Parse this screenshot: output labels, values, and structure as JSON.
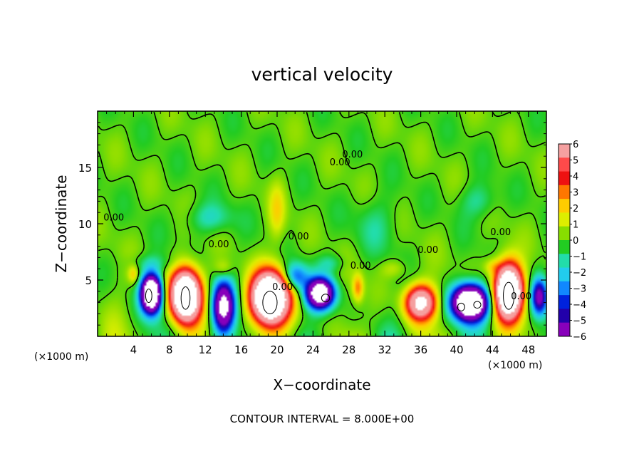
{
  "chart_data": {
    "type": "heatmap",
    "title": "vertical velocity",
    "xlabel": "X−coordinate",
    "ylabel": "Z−coordinate",
    "xlim": [
      0,
      50
    ],
    "ylim": [
      0,
      20
    ],
    "x_ticks": [
      4,
      8,
      12,
      16,
      20,
      24,
      28,
      32,
      36,
      40,
      44,
      48
    ],
    "y_ticks": [
      5,
      10,
      15
    ],
    "x_units_left": "(×1000 m)",
    "x_units_right": "(×1000 m)",
    "footer": "CONTOUR INTERVAL = 8.000E+00",
    "colorbar": {
      "min": -6,
      "max": 6,
      "labels": [
        "6",
        "5",
        "4",
        "3",
        "2",
        "1",
        "0",
        "−1",
        "−2",
        "−3",
        "−4",
        "−5",
        "−6"
      ],
      "colors": [
        "#f5a0a0",
        "#ff4a4a",
        "#ee1111",
        "#ff7700",
        "#ffcc00",
        "#ddee00",
        "#88dd00",
        "#22cc22",
        "#22ddaa",
        "#22ccee",
        "#1188ff",
        "#0022dd",
        "#2200aa",
        "#8800bb"
      ]
    },
    "contour_labels": [
      {
        "text": "0.00",
        "x": 27.0,
        "y": 15.2
      },
      {
        "text": "0.00",
        "x": 28.4,
        "y": 15.9
      },
      {
        "text": "0.00",
        "x": 1.8,
        "y": 10.3
      },
      {
        "text": "0.00",
        "x": 13.5,
        "y": 7.9
      },
      {
        "text": "0.00",
        "x": 22.4,
        "y": 8.6
      },
      {
        "text": "0.00",
        "x": 20.6,
        "y": 4.1
      },
      {
        "text": "0.00",
        "x": 29.3,
        "y": 6.0
      },
      {
        "text": "0.00",
        "x": 36.8,
        "y": 7.4
      },
      {
        "text": "0.00",
        "x": 44.9,
        "y": 9.0
      },
      {
        "text": "0.00",
        "x": 47.2,
        "y": 3.3
      }
    ],
    "features": [
      {
        "x": 9.8,
        "z": 3.6,
        "value": 15,
        "sx": 1.6,
        "sz": 2.2
      },
      {
        "x": 19.2,
        "z": 3.4,
        "value": 16,
        "sx": 2.0,
        "sz": 2.2
      },
      {
        "x": 36.0,
        "z": 3.0,
        "value": 9,
        "sx": 1.7,
        "sz": 1.5
      },
      {
        "x": 45.8,
        "z": 4.0,
        "value": 15,
        "sx": 1.5,
        "sz": 2.3
      },
      {
        "x": 6.0,
        "z": 3.8,
        "value": -14,
        "sx": 1.1,
        "sz": 1.6
      },
      {
        "x": 14.0,
        "z": 2.6,
        "value": -9,
        "sx": 1.2,
        "sz": 2.2
      },
      {
        "x": 24.8,
        "z": 3.8,
        "value": -11,
        "sx": 1.5,
        "sz": 1.3
      },
      {
        "x": 22.0,
        "z": 5.3,
        "value": -4,
        "sx": 1.4,
        "sz": 1.2
      },
      {
        "x": 41.5,
        "z": 3.0,
        "value": -14,
        "sx": 1.9,
        "sz": 1.5
      },
      {
        "x": 49.2,
        "z": 3.5,
        "value": -6,
        "sx": 0.9,
        "sz": 1.6
      },
      {
        "x": 29.0,
        "z": 4.3,
        "value": 3,
        "sx": 0.6,
        "sz": 1.2
      },
      {
        "x": 20.0,
        "z": 11.0,
        "value": 1.7,
        "sx": 0.9,
        "sz": 2.5
      },
      {
        "x": 4.0,
        "z": 5.5,
        "value": 2,
        "sx": 0.6,
        "sz": 0.8
      },
      {
        "x": 14.0,
        "z": 6.0,
        "value": 1.5,
        "sx": 1.0,
        "sz": 0.8
      },
      {
        "x": 44.0,
        "z": 6.2,
        "value": 1.5,
        "sx": 1.0,
        "sz": 0.7
      },
      {
        "x": 33.0,
        "z": 6.0,
        "value": 1.2,
        "sx": 1.5,
        "sz": 0.8
      },
      {
        "x": 12.5,
        "z": 10.5,
        "value": -1.6,
        "sx": 2.5,
        "sz": 1.3
      },
      {
        "x": 42.5,
        "z": 12.0,
        "value": -1.4,
        "sx": 2.0,
        "sz": 1.5
      },
      {
        "x": 31.0,
        "z": 10.0,
        "value": -1.0,
        "sx": 2.5,
        "sz": 2.5
      },
      {
        "x": 6.0,
        "z": 6.5,
        "value": -1.0,
        "sx": 2.5,
        "sz": 0.8
      },
      {
        "x": 26.0,
        "z": 6.5,
        "value": -1.3,
        "sx": 1.5,
        "sz": 0.8
      }
    ],
    "white_contours": [
      {
        "x": 9.8,
        "z": 3.4,
        "rx": 0.5,
        "rz": 1.0
      },
      {
        "x": 19.2,
        "z": 3.0,
        "rx": 0.8,
        "rz": 1.0
      },
      {
        "x": 45.8,
        "z": 3.6,
        "rx": 0.6,
        "rz": 1.2
      },
      {
        "x": 5.7,
        "z": 3.6,
        "rx": 0.35,
        "rz": 0.6
      },
      {
        "x": 25.4,
        "z": 3.4,
        "rx": 0.45,
        "rz": 0.35
      },
      {
        "x": 40.5,
        "z": 2.6,
        "rx": 0.4,
        "rz": 0.35
      },
      {
        "x": 42.3,
        "z": 2.8,
        "rx": 0.4,
        "rz": 0.3
      }
    ]
  }
}
